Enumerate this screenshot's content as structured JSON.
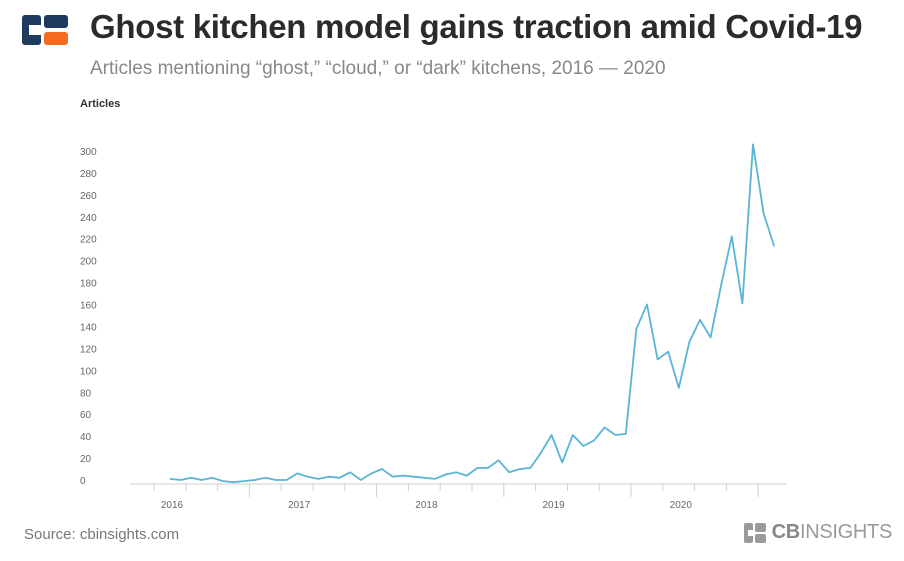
{
  "header": {
    "title": "Ghost kitchen model gains traction amid Covid-19",
    "subtitle": "Articles mentioning “ghost,” “cloud,” or “dark” kitchens, 2016 — 2020"
  },
  "footer": {
    "source": "Source: cbinsights.com",
    "brand_bold": "CB",
    "brand_rest": "INSIGHTS"
  },
  "colors": {
    "line": "#5ab4d6",
    "logo_dark": "#1e3a5f",
    "logo_accent": "#f26b21"
  },
  "chart_data": {
    "type": "line",
    "title": "Ghost kitchen model gains traction amid Covid-19",
    "subtitle": "Articles mentioning “ghost,” “cloud,” or “dark” kitchens, 2016 — 2020",
    "ylabel": "Articles",
    "xlabel": "",
    "ylim": [
      0,
      300
    ],
    "yticks": [
      0,
      20,
      40,
      60,
      80,
      100,
      120,
      140,
      160,
      180,
      200,
      220,
      240,
      260,
      280,
      300
    ],
    "xticks": [
      "2016",
      "2017",
      "2018",
      "2019",
      "2020"
    ],
    "grid": false,
    "x": [
      "2016-01",
      "2016-02",
      "2016-03",
      "2016-04",
      "2016-05",
      "2016-06",
      "2016-07",
      "2016-08",
      "2016-09",
      "2016-10",
      "2016-11",
      "2016-12",
      "2017-01",
      "2017-02",
      "2017-03",
      "2017-04",
      "2017-05",
      "2017-06",
      "2017-07",
      "2017-08",
      "2017-09",
      "2017-10",
      "2017-11",
      "2017-12",
      "2018-01",
      "2018-02",
      "2018-03",
      "2018-04",
      "2018-05",
      "2018-06",
      "2018-07",
      "2018-08",
      "2018-09",
      "2018-10",
      "2018-11",
      "2018-12",
      "2019-01",
      "2019-02",
      "2019-03",
      "2019-04",
      "2019-05",
      "2019-06",
      "2019-07",
      "2019-08",
      "2019-09",
      "2019-10",
      "2019-11",
      "2019-12",
      "2020-01",
      "2020-02",
      "2020-03",
      "2020-04",
      "2020-05",
      "2020-06",
      "2020-07",
      "2020-08",
      "2020-09",
      "2020-10"
    ],
    "series": [
      {
        "values": [
          1,
          0,
          2,
          0,
          2,
          -1,
          -2,
          -1,
          0,
          2,
          0,
          0,
          6,
          3,
          1,
          3,
          2,
          7,
          0,
          6,
          10,
          3,
          4,
          3,
          2,
          1,
          5,
          7,
          4,
          11,
          11,
          18,
          7,
          10,
          11,
          25,
          41,
          16,
          41,
          31,
          36,
          48,
          41,
          42,
          138,
          160,
          110,
          117,
          84,
          126,
          146,
          130,
          178,
          222,
          161,
          306,
          243,
          213
        ]
      }
    ]
  }
}
